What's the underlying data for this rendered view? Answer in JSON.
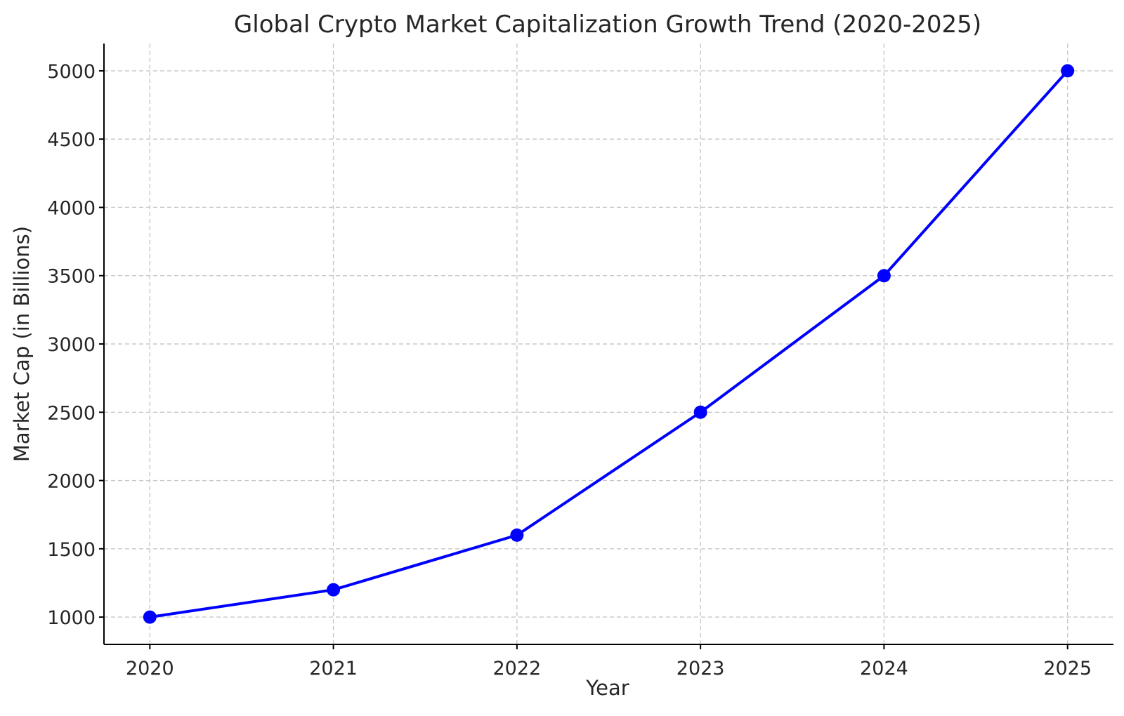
{
  "chart_data": {
    "type": "line",
    "title": "Global Crypto Market Capitalization Growth Trend (2020-2025)",
    "xlabel": "Year",
    "ylabel": "Market Cap (in Billions)",
    "x": [
      2020,
      2021,
      2022,
      2023,
      2024,
      2025
    ],
    "x_tick_labels": [
      "2020",
      "2021",
      "2022",
      "2023",
      "2024",
      "2025"
    ],
    "y_ticks": [
      1000,
      1500,
      2000,
      2500,
      3000,
      3500,
      4000,
      4500,
      5000
    ],
    "y_tick_labels": [
      "1000",
      "1500",
      "2000",
      "2500",
      "3000",
      "3500",
      "4000",
      "4500",
      "5000"
    ],
    "xlim": [
      2019.75,
      2025.25
    ],
    "ylim": [
      800,
      5200
    ],
    "grid": true,
    "legend": "none",
    "series": [
      {
        "values": [
          1000,
          1200,
          1600,
          2500,
          3500,
          5000
        ],
        "color": "#0000ff",
        "marker": "circle"
      }
    ]
  }
}
